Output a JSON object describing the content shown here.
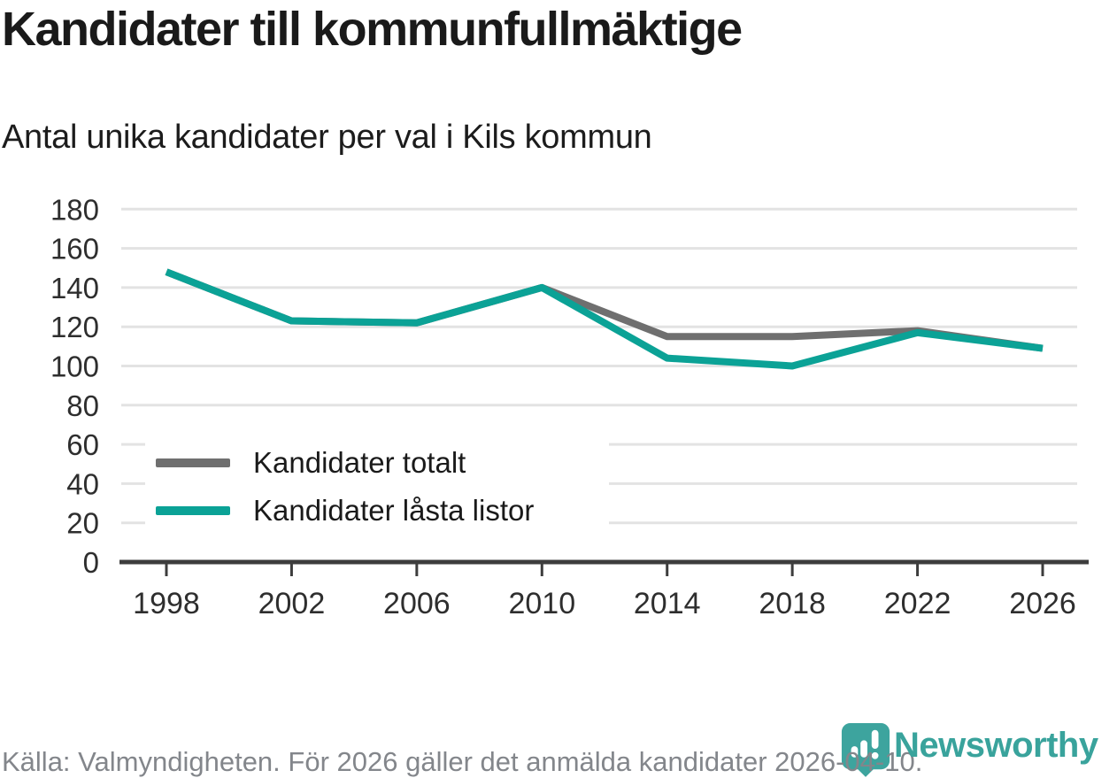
{
  "header": {
    "title": "Kandidater till kommunfullmäktige",
    "subtitle": "Antal unika kandidater per val i Kils kommun"
  },
  "chart_data": {
    "type": "line",
    "title": "Kandidater till kommunfullmäktige",
    "subtitle": "Antal unika kandidater per val i Kils kommun",
    "x": [
      1998,
      2002,
      2006,
      2010,
      2014,
      2018,
      2022,
      2026
    ],
    "series": [
      {
        "name": "Kandidater totalt",
        "color": "#6f6f6f",
        "values": [
          148,
          123,
          122,
          140,
          115,
          115,
          118,
          109
        ]
      },
      {
        "name": "Kandidater låsta listor",
        "color": "#0ba296",
        "values": [
          148,
          123,
          122,
          140,
          104,
          100,
          117,
          109
        ]
      }
    ],
    "xlabel": "",
    "ylabel": "",
    "ylim": [
      0,
      180
    ],
    "yticks": [
      0,
      20,
      40,
      60,
      80,
      100,
      120,
      140,
      160,
      180
    ],
    "grid": "horizontal",
    "legend_position": "inside-bottom-left"
  },
  "colors": {
    "series_total": "#6f6f6f",
    "series_locked_lists": "#0ba296",
    "gridline": "#e3e3e3",
    "axis": "#3d3d3d",
    "tick_label": "#2e2e2e",
    "brand_teal": "#39a39c"
  },
  "footer": {
    "source": "Källa: Valmyndigheten. För 2026 gäller det anmälda kandidater 2026-04-10."
  },
  "logo": {
    "wordmark": "Newsworthy",
    "icon": "newsworthy-pin-barchart-icon"
  }
}
